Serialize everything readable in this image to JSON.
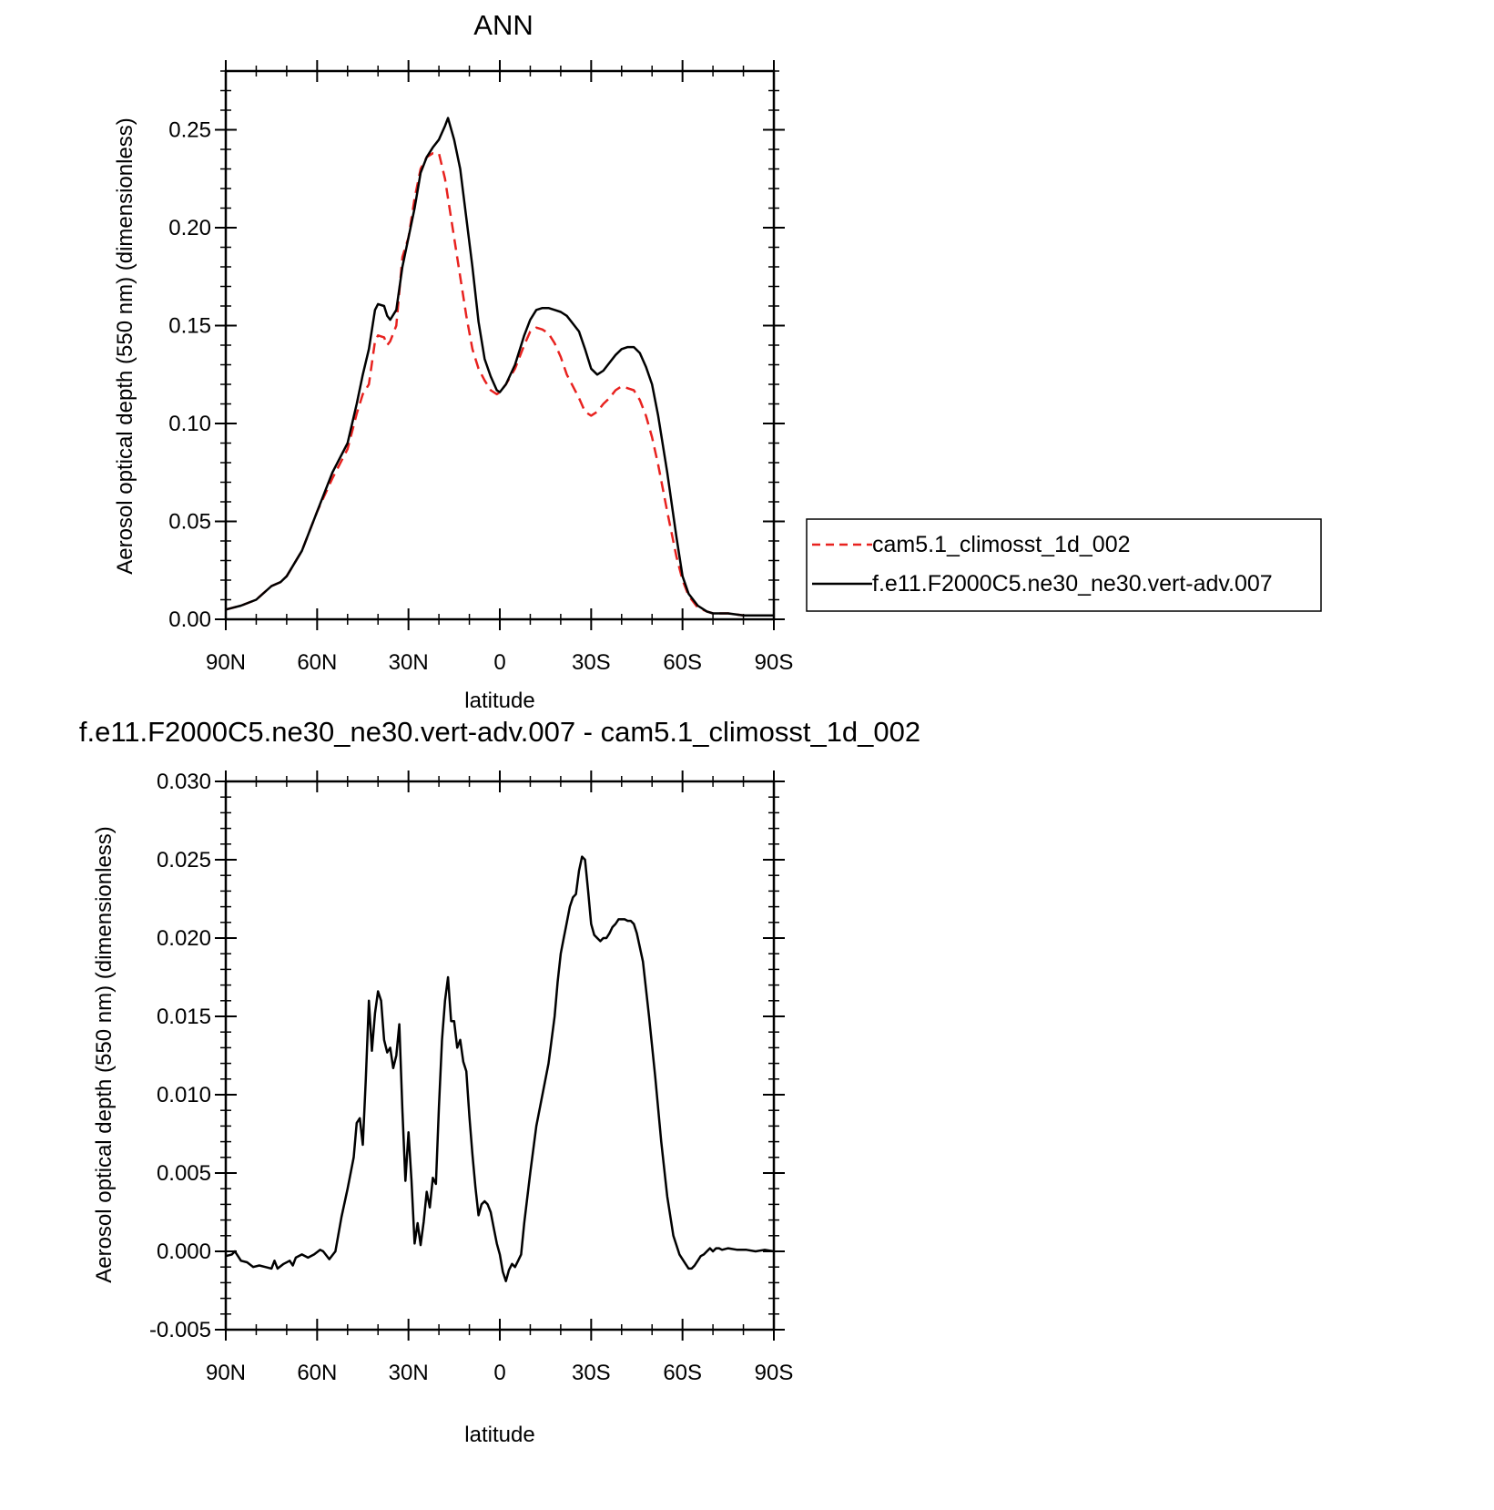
{
  "chart_data": [
    {
      "type": "line",
      "title": "ANN",
      "xlabel": "latitude",
      "ylabel": "Aerosol optical depth (550 nm) (dimensionless)",
      "xlim": [
        90,
        -90
      ],
      "ylim": [
        0,
        0.28
      ],
      "x_ticks": [
        90,
        60,
        30,
        0,
        -30,
        -60,
        -90
      ],
      "x_tick_labels": [
        "90N",
        "60N",
        "30N",
        "0",
        "30S",
        "60S",
        "90S"
      ],
      "y_ticks": [
        0,
        0.05,
        0.1,
        0.15,
        0.2,
        0.25
      ],
      "y_tick_labels": [
        "0.00",
        "0.05",
        "0.10",
        "0.15",
        "0.20",
        "0.25"
      ],
      "grid": false,
      "legend": "right",
      "x_unit": "degrees latitude (positive = N, negative = S)",
      "series": [
        {
          "name": "cam5.1_climosst_1d_002",
          "color": "#e8221f",
          "dash": "dashed",
          "x": [
            90,
            85,
            80,
            75,
            72,
            70,
            65,
            60,
            55,
            50,
            47,
            45,
            43,
            41,
            40,
            38,
            37,
            36,
            34,
            32,
            30,
            28,
            26,
            24,
            22,
            20,
            18,
            17,
            15,
            13,
            11,
            9,
            7,
            5,
            3,
            1,
            0,
            -2,
            -5,
            -8,
            -10,
            -12,
            -14,
            -16,
            -18,
            -20,
            -22,
            -24,
            -26,
            -28,
            -30,
            -32,
            -34,
            -36,
            -38,
            -40,
            -42,
            -44,
            -46,
            -48,
            -50,
            -52,
            -55,
            -58,
            -60,
            -62,
            -65,
            -68,
            -70,
            -75,
            -80,
            -85,
            -90
          ],
          "y": [
            0.005,
            0.007,
            0.01,
            0.017,
            0.019,
            0.022,
            0.035,
            0.055,
            0.072,
            0.087,
            0.105,
            0.115,
            0.12,
            0.142,
            0.145,
            0.144,
            0.14,
            0.142,
            0.15,
            0.185,
            0.195,
            0.215,
            0.23,
            0.236,
            0.238,
            0.238,
            0.225,
            0.215,
            0.195,
            0.175,
            0.155,
            0.138,
            0.128,
            0.122,
            0.117,
            0.115,
            0.116,
            0.12,
            0.128,
            0.14,
            0.147,
            0.149,
            0.148,
            0.146,
            0.141,
            0.134,
            0.125,
            0.119,
            0.113,
            0.106,
            0.104,
            0.106,
            0.11,
            0.113,
            0.117,
            0.119,
            0.118,
            0.117,
            0.112,
            0.104,
            0.093,
            0.079,
            0.055,
            0.032,
            0.02,
            0.012,
            0.006,
            0.004,
            0.003,
            0.003,
            0.002,
            0.002,
            0.002
          ]
        },
        {
          "name": "f.e11.F2000C5.ne30_ne30.vert-adv.007",
          "color": "#000000",
          "dash": "solid",
          "x": [
            90,
            85,
            80,
            75,
            72,
            70,
            65,
            60,
            55,
            50,
            47,
            45,
            43,
            41,
            40,
            38,
            37,
            36,
            34,
            32,
            30,
            28,
            26,
            24,
            22,
            20,
            18,
            17,
            15,
            13,
            11,
            9,
            7,
            5,
            3,
            1,
            0,
            -2,
            -5,
            -8,
            -10,
            -12,
            -14,
            -16,
            -18,
            -20,
            -22,
            -24,
            -26,
            -28,
            -30,
            -32,
            -34,
            -36,
            -38,
            -40,
            -42,
            -44,
            -46,
            -48,
            -50,
            -52,
            -55,
            -58,
            -60,
            -62,
            -65,
            -68,
            -70,
            -75,
            -80,
            -85,
            -90
          ],
          "y": [
            0.005,
            0.007,
            0.01,
            0.017,
            0.019,
            0.022,
            0.035,
            0.055,
            0.075,
            0.09,
            0.11,
            0.125,
            0.138,
            0.158,
            0.161,
            0.16,
            0.155,
            0.153,
            0.158,
            0.18,
            0.195,
            0.21,
            0.228,
            0.236,
            0.241,
            0.245,
            0.252,
            0.256,
            0.245,
            0.23,
            0.205,
            0.18,
            0.152,
            0.133,
            0.124,
            0.117,
            0.116,
            0.12,
            0.13,
            0.145,
            0.153,
            0.158,
            0.159,
            0.159,
            0.158,
            0.157,
            0.155,
            0.151,
            0.147,
            0.138,
            0.128,
            0.125,
            0.127,
            0.131,
            0.135,
            0.138,
            0.139,
            0.139,
            0.136,
            0.129,
            0.12,
            0.104,
            0.075,
            0.042,
            0.022,
            0.013,
            0.007,
            0.004,
            0.003,
            0.003,
            0.002,
            0.002,
            0.002
          ]
        }
      ]
    },
    {
      "type": "line",
      "title": "f.e11.F2000C5.ne30_ne30.vert-adv.007 - cam5.1_climosst_1d_002",
      "xlabel": "latitude",
      "ylabel": "Aerosol optical depth (550 nm) (dimensionless)",
      "xlim": [
        90,
        -90
      ],
      "ylim": [
        -0.005,
        0.03
      ],
      "x_ticks": [
        90,
        60,
        30,
        0,
        -30,
        -60,
        -90
      ],
      "x_tick_labels": [
        "90N",
        "60N",
        "30N",
        "0",
        "30S",
        "60S",
        "90S"
      ],
      "y_ticks": [
        -0.005,
        0,
        0.005,
        0.01,
        0.015,
        0.02,
        0.025,
        0.03
      ],
      "y_tick_labels": [
        "-0.005",
        "0.000",
        "0.005",
        "0.010",
        "0.015",
        "0.020",
        "0.025",
        "0.030"
      ],
      "grid": false,
      "series": [
        {
          "color": "#000000",
          "dash": "solid",
          "x": [
            90,
            88,
            87,
            85,
            83,
            81,
            79,
            77,
            75,
            74,
            73,
            71,
            69,
            68,
            67,
            65,
            63,
            61,
            59,
            58,
            56,
            54,
            52,
            50,
            48,
            47,
            46,
            45,
            44,
            43,
            42,
            41,
            40,
            39,
            38,
            37,
            36,
            35,
            34,
            33,
            32,
            31,
            30,
            29,
            28,
            27,
            26,
            25,
            24,
            23,
            22,
            21,
            20,
            19,
            18,
            17,
            16,
            15,
            14,
            13,
            12,
            11,
            10,
            9,
            8,
            7,
            6,
            5,
            4,
            3,
            2,
            1,
            0,
            -1,
            -2,
            -3,
            -4,
            -5,
            -6,
            -7,
            -8,
            -10,
            -12,
            -14,
            -16,
            -18,
            -19,
            -20,
            -21,
            -22,
            -23,
            -24,
            -25,
            -26,
            -27,
            -28,
            -29,
            -30,
            -31,
            -32,
            -33,
            -34,
            -35,
            -36,
            -37,
            -38,
            -39,
            -40,
            -41,
            -42,
            -43,
            -44,
            -45,
            -47,
            -49,
            -51,
            -53,
            -55,
            -57,
            -59,
            -61,
            -62,
            -63,
            -64,
            -65,
            -66,
            -67,
            -68,
            -69,
            -70,
            -71,
            -72,
            -73,
            -75,
            -78,
            -81,
            -84,
            -87,
            -90
          ],
          "y": [
            -0.0003,
            -0.0002,
            0.0,
            -0.0006,
            -0.0007,
            -0.001,
            -0.0009,
            -0.001,
            -0.0011,
            -0.0006,
            -0.0011,
            -0.0008,
            -0.0006,
            -0.0009,
            -0.0004,
            -0.0002,
            -0.0004,
            -0.0002,
            0.0001,
            0.0,
            -0.0005,
            0.0,
            0.0022,
            0.004,
            0.006,
            0.0082,
            0.0085,
            0.0068,
            0.011,
            0.016,
            0.0128,
            0.0152,
            0.0166,
            0.016,
            0.0135,
            0.0127,
            0.013,
            0.0117,
            0.0125,
            0.0145,
            0.009,
            0.0045,
            0.0076,
            0.0045,
            0.0005,
            0.0018,
            0.0004,
            0.0019,
            0.0038,
            0.0028,
            0.0047,
            0.0043,
            0.0092,
            0.0135,
            0.016,
            0.0175,
            0.0147,
            0.0147,
            0.013,
            0.0135,
            0.0121,
            0.0115,
            0.0086,
            0.0062,
            0.0041,
            0.0023,
            0.003,
            0.0032,
            0.003,
            0.0025,
            0.0015,
            0.0005,
            -0.0002,
            -0.0013,
            -0.0019,
            -0.0012,
            -0.0008,
            -0.001,
            -0.0006,
            -0.0002,
            0.0018,
            0.005,
            0.008,
            0.01,
            0.012,
            0.015,
            0.0172,
            0.019,
            0.02,
            0.021,
            0.022,
            0.0226,
            0.0228,
            0.0243,
            0.0252,
            0.025,
            0.023,
            0.0209,
            0.0202,
            0.02,
            0.0198,
            0.02,
            0.02,
            0.0203,
            0.0207,
            0.0209,
            0.0212,
            0.0212,
            0.0212,
            0.0211,
            0.0211,
            0.0209,
            0.0203,
            0.0185,
            0.015,
            0.0112,
            0.007,
            0.0035,
            0.001,
            -0.0002,
            -0.0008,
            -0.0011,
            -0.0011,
            -0.0009,
            -0.0006,
            -0.0003,
            -0.0002,
            0.0,
            0.0002,
            0.0,
            0.0002,
            0.0002,
            0.0001,
            0.0002,
            0.0001,
            0.0001,
            0.0,
            0.0001,
            0.0
          ]
        }
      ]
    }
  ]
}
